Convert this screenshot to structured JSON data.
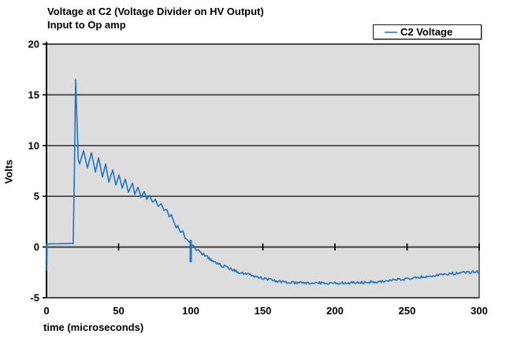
{
  "title": {
    "line1": "Voltage at C2 (Voltage Divider on HV Output)",
    "line2": "Input to Op amp"
  },
  "legend": {
    "label": "C2 Voltage"
  },
  "axes": {
    "y": {
      "label": "Volts",
      "ticks": [
        20,
        15,
        10,
        5,
        0,
        -5
      ],
      "min": -5,
      "max": 20
    },
    "x": {
      "label": "time (microseconds)",
      "ticks": [
        0,
        50,
        100,
        150,
        200,
        250,
        300
      ],
      "min": 0,
      "max": 300
    }
  },
  "colors": {
    "series": "#1F75C4",
    "legend_line": "#4E94D6",
    "plot_bg": "#DDDDDD",
    "grid": "#3F3F3F",
    "axis": "#000000",
    "text": "#000000",
    "legend_bg": "#FFFFFF"
  },
  "chart_data": {
    "type": "line",
    "title": "Voltage at C2 (Voltage Divider on HV Output) Input to Op amp",
    "xlabel": "time (microseconds)",
    "ylabel": "Volts",
    "xlim": [
      0,
      300
    ],
    "ylim": [
      -5,
      20
    ],
    "grid": "horizontal-only",
    "legend_position": "top-right",
    "series": [
      {
        "name": "C2 Voltage",
        "description": "Flat ~0.3V until 18.5us with a brief dip to -2.3V at t=0; sharp spike to 16.5V at ~20us; damped ringing (period ~4.7us) decaying from ~9.5V; baseline falls through 0V at ~102us to a minimum of ~-3.55V between 165us and 215us; slow recovery to ~-2.4V at 300us; noisy trace after ~100us; vertical glitch at 100us.",
        "points": [
          [
            0,
            0.3
          ],
          [
            0.2,
            -2.3
          ],
          [
            0.4,
            0.3
          ],
          [
            18.5,
            0.35
          ],
          [
            19.3,
            7.0
          ],
          [
            20.2,
            16.5
          ],
          [
            21.0,
            13.0
          ],
          [
            22.0,
            8.6
          ],
          [
            23.0,
            8.2
          ],
          [
            25.7,
            9.5
          ],
          [
            28.4,
            7.8
          ],
          [
            31.1,
            9.3
          ],
          [
            33.9,
            7.4
          ],
          [
            36.1,
            8.8
          ],
          [
            38.8,
            6.9
          ],
          [
            41.0,
            8.2
          ],
          [
            43.2,
            6.4
          ],
          [
            45.9,
            7.6
          ],
          [
            48.1,
            6.1
          ],
          [
            50.3,
            7.1
          ],
          [
            52.5,
            5.8
          ],
          [
            54.6,
            6.7
          ],
          [
            56.8,
            5.4
          ],
          [
            59.6,
            6.3
          ],
          [
            61.2,
            5.2
          ],
          [
            63.4,
            5.9
          ],
          [
            65.6,
            4.9
          ],
          [
            67.8,
            5.5
          ],
          [
            69.5,
            4.7
          ],
          [
            71.5,
            5.1
          ],
          [
            73.5,
            4.4
          ],
          [
            75.5,
            4.7
          ],
          [
            77.5,
            4.0
          ],
          [
            79.5,
            4.3
          ],
          [
            81.5,
            3.6
          ],
          [
            83.5,
            3.7
          ],
          [
            85.0,
            3.0
          ],
          [
            86.5,
            3.2
          ],
          [
            88.0,
            2.6
          ],
          [
            90.0,
            1.9
          ],
          [
            91.0,
            2.1
          ],
          [
            93.0,
            1.4
          ],
          [
            94.5,
            1.6
          ],
          [
            96.0,
            0.9
          ],
          [
            98.0,
            0.7
          ],
          [
            100.0,
            0.3
          ],
          [
            102.0,
            0.1
          ],
          [
            104,
            -0.3
          ],
          [
            107,
            -0.55
          ],
          [
            111,
            -0.9
          ],
          [
            114,
            -1.25
          ],
          [
            118,
            -1.6
          ],
          [
            122,
            -1.85
          ],
          [
            126,
            -2.05
          ],
          [
            130,
            -2.3
          ],
          [
            134,
            -2.5
          ],
          [
            138,
            -2.65
          ],
          [
            142,
            -2.8
          ],
          [
            146,
            -2.95
          ],
          [
            150,
            -3.08
          ],
          [
            154,
            -3.2
          ],
          [
            158,
            -3.32
          ],
          [
            162,
            -3.42
          ],
          [
            166,
            -3.48
          ],
          [
            170,
            -3.52
          ],
          [
            175,
            -3.55
          ],
          [
            185,
            -3.55
          ],
          [
            195,
            -3.55
          ],
          [
            205,
            -3.55
          ],
          [
            215,
            -3.52
          ],
          [
            222,
            -3.48
          ],
          [
            230,
            -3.4
          ],
          [
            240,
            -3.28
          ],
          [
            250,
            -3.12
          ],
          [
            260,
            -2.95
          ],
          [
            270,
            -2.78
          ],
          [
            278,
            -2.65
          ],
          [
            285,
            -2.57
          ],
          [
            292,
            -2.5
          ],
          [
            300,
            -2.42
          ]
        ]
      }
    ],
    "glitch_segment": {
      "t": 100,
      "from": 0.7,
      "to": -1.5
    },
    "noise_ranges": [
      {
        "from": 60,
        "to": 96,
        "amp": 0.04
      },
      {
        "from": 96,
        "to": 104,
        "amp": 0.06
      },
      {
        "from": 104,
        "to": 300,
        "amp": 0.13
      }
    ]
  }
}
